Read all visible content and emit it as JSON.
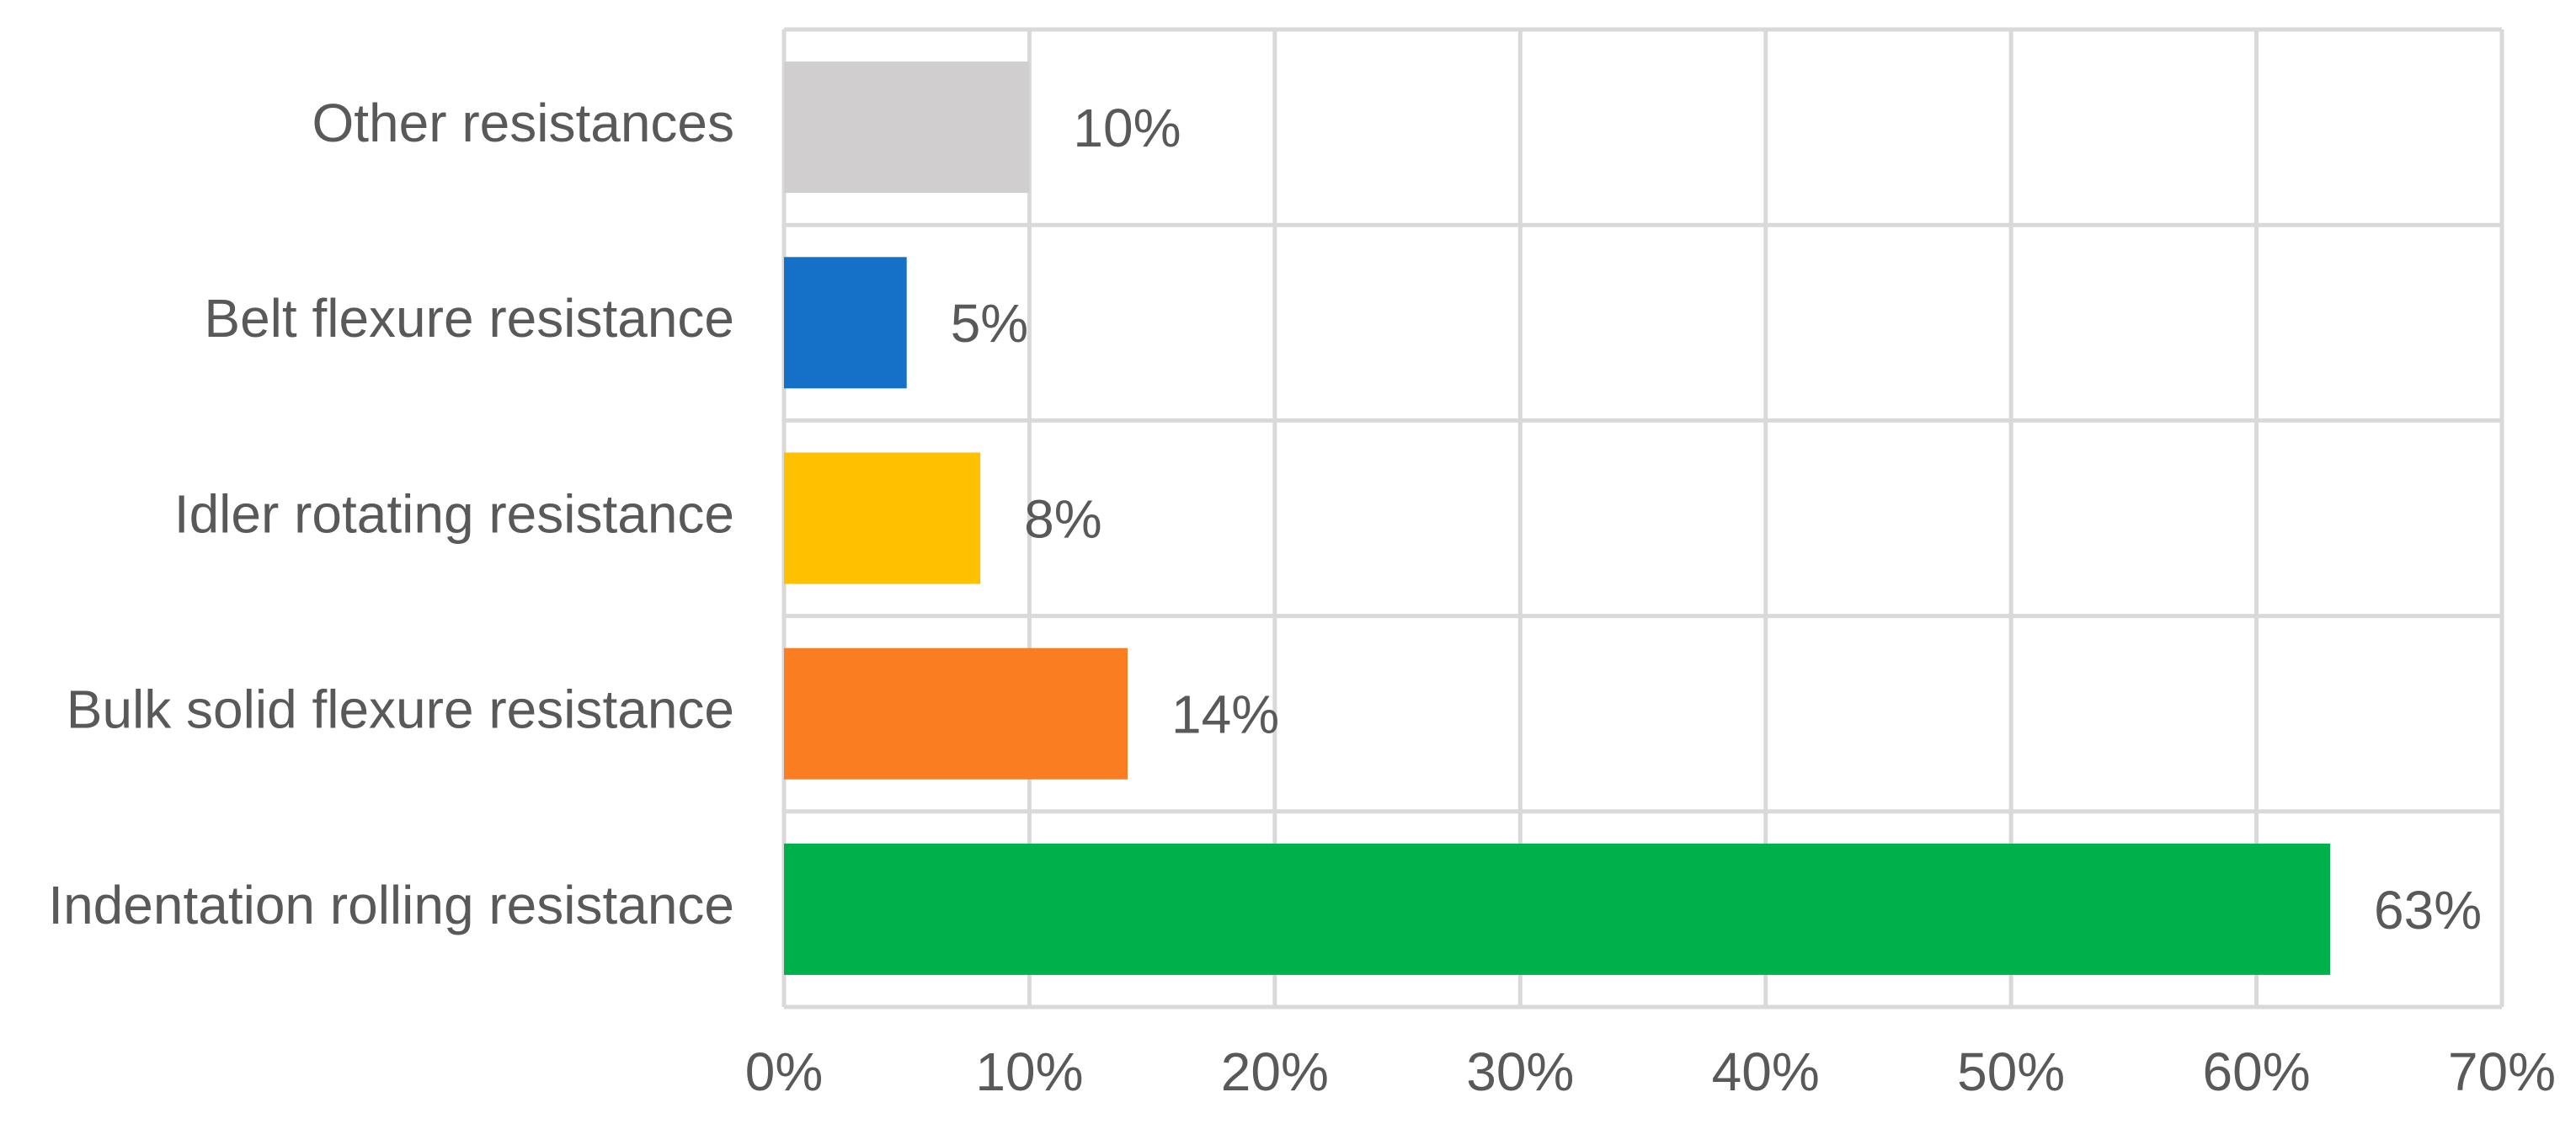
{
  "chart_data": {
    "type": "hbar",
    "categories": [
      "Other resistances",
      "Belt flexure resistance",
      "Idler rotating resistance",
      "Bulk solid flexure resistance",
      "Indentation rolling resistance"
    ],
    "values": [
      10,
      5,
      8,
      14,
      63
    ],
    "value_labels": [
      "10%",
      "5%",
      "8%",
      "14%",
      "63%"
    ],
    "colors": [
      "#d0cece",
      "#1570c8",
      "#ffc000",
      "#fb7d22",
      "#00b04a"
    ],
    "xlim": [
      0,
      70
    ],
    "xticks": [
      {
        "value": 0,
        "label": "0%"
      },
      {
        "value": 10,
        "label": "10%"
      },
      {
        "value": 20,
        "label": "20%"
      },
      {
        "value": 30,
        "label": "30%"
      },
      {
        "value": 40,
        "label": "40%"
      },
      {
        "value": 50,
        "label": "50%"
      },
      {
        "value": 60,
        "label": "60%"
      },
      {
        "value": 70,
        "label": "70%"
      }
    ],
    "grid": true
  }
}
